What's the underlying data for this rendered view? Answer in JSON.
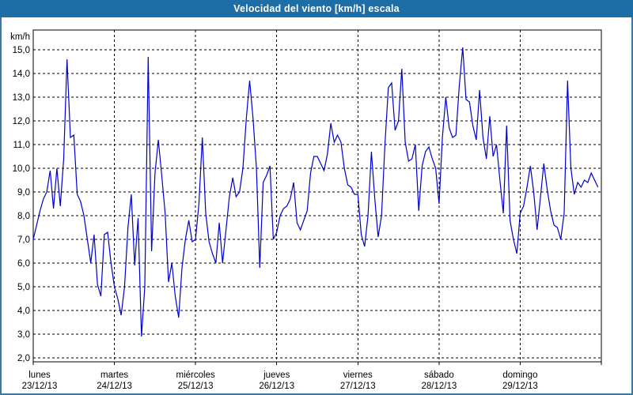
{
  "window": {
    "title": "Velocidad del viento [km/h] escala"
  },
  "colors": {
    "titlebar_bg": "#1d6da6",
    "title_text": "#ffffff",
    "window_border": "#3579ad",
    "line": "#0000cd",
    "grid": "#000000",
    "axis_text": "#000000",
    "background": "#ffffff"
  },
  "chart_data": {
    "type": "line",
    "title": "Velocidad del viento [km/h] escala",
    "ylabel_unit": "km/h",
    "ylim": [
      2.0,
      15.0
    ],
    "ytick_interval": 1.0,
    "ytick_labels": [
      "15,0",
      "14,0",
      "13,0",
      "12,0",
      "11,0",
      "10,0",
      "9,0",
      "8,0",
      "7,0",
      "6,0",
      "5,0",
      "4,0",
      "3,0",
      "2,0"
    ],
    "grid": "dashed",
    "legend_position": "none",
    "x_mode": "7 days (hourly samples per day)",
    "days": [
      {
        "weekday": "lunes",
        "date": "23/12/13",
        "values": [
          7.0,
          7.6,
          8.2,
          8.7,
          9.0,
          9.9,
          8.3,
          10.0,
          8.4,
          10.4,
          14.6,
          11.3,
          11.4,
          8.9,
          8.6,
          8.0,
          7.0,
          6.0,
          7.2,
          5.1,
          4.6,
          7.2,
          7.3,
          6.0
        ]
      },
      {
        "weekday": "martes",
        "date": "24/12/13",
        "values": [
          5.0,
          4.5,
          3.8,
          5.0,
          7.5,
          8.9,
          5.9,
          7.9,
          2.9,
          5.0,
          14.7,
          6.5,
          9.8,
          11.2,
          9.7,
          8.1,
          5.2,
          6.0,
          4.6,
          3.7,
          5.8,
          7.0,
          7.8,
          6.9
        ]
      },
      {
        "weekday": "miércoles",
        "date": "25/12/13",
        "values": [
          7.0,
          8.5,
          11.3,
          8.1,
          6.9,
          6.4,
          6.0,
          7.7,
          6.0,
          7.4,
          8.8,
          9.6,
          8.8,
          9.0,
          10.0,
          12.1,
          13.7,
          12.1,
          10.0,
          5.8,
          9.4,
          9.7,
          10.1,
          7.0
        ]
      },
      {
        "weekday": "jueves",
        "date": "26/12/13",
        "values": [
          7.3,
          8.0,
          8.3,
          8.4,
          8.7,
          9.4,
          7.7,
          7.4,
          7.8,
          8.2,
          9.8,
          10.5,
          10.5,
          10.2,
          9.9,
          10.6,
          11.9,
          11.1,
          11.4,
          11.1,
          10.0,
          9.3,
          9.2,
          8.9
        ]
      },
      {
        "weekday": "viernes",
        "date": "27/12/13",
        "values": [
          8.9,
          7.2,
          6.7,
          8.0,
          10.7,
          8.7,
          7.1,
          8.0,
          11.0,
          13.4,
          13.6,
          11.6,
          12.0,
          14.2,
          11.1,
          10.3,
          10.4,
          11.0,
          8.2,
          10.1,
          10.7,
          10.9,
          10.4,
          10.0
        ]
      },
      {
        "weekday": "sábado",
        "date": "28/12/13",
        "values": [
          8.5,
          11.3,
          13.0,
          11.7,
          11.3,
          11.4,
          13.5,
          15.1,
          12.9,
          12.8,
          11.8,
          11.2,
          13.3,
          11.3,
          10.4,
          12.2,
          10.5,
          11.0,
          9.5,
          8.1,
          11.8,
          7.8,
          7.0,
          6.4
        ]
      },
      {
        "weekday": "domingo",
        "date": "29/12/13",
        "values": [
          8.1,
          8.4,
          9.2,
          10.1,
          9.0,
          7.4,
          8.8,
          10.2,
          9.1,
          8.2,
          7.6,
          7.5,
          7.0,
          8.1,
          13.7,
          10.0,
          8.9,
          9.4,
          9.2,
          9.5,
          9.4,
          9.8,
          9.5,
          9.2
        ]
      }
    ]
  }
}
